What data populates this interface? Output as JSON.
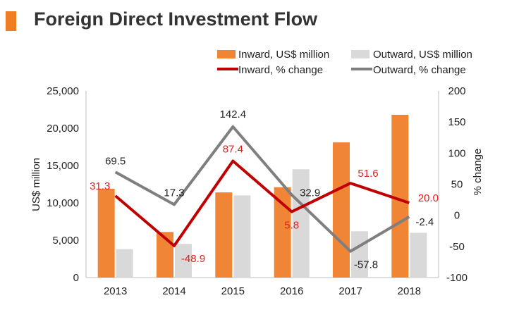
{
  "title": "Foreign Direct Investment Flow",
  "colors": {
    "inward_bar": "#f08536",
    "outward_bar": "#d9d9d9",
    "inward_line": "#c00000",
    "outward_line": "#7f7f7f",
    "accent": "#ef7d22"
  },
  "legend": {
    "inward_bar": "Inward, US$ million",
    "outward_bar": "Outward, US$ million",
    "inward_line": "Inward, % change",
    "outward_line": "Outward, % change"
  },
  "chart_data": {
    "type": "bar",
    "title": "Foreign Direct Investment Flow",
    "categories": [
      "2013",
      "2014",
      "2015",
      "2016",
      "2017",
      "2018"
    ],
    "ylabel": "US$ million",
    "y2label": "% change",
    "ylim": [
      0,
      25000
    ],
    "y2lim": [
      -100,
      200
    ],
    "yticks": [
      "0",
      "5,000",
      "10,000",
      "15,000",
      "20,000",
      "25,000"
    ],
    "y2ticks": [
      "-100",
      "-50",
      "0",
      "50",
      "100",
      "150",
      "200"
    ],
    "legend_position": "top-right",
    "series": [
      {
        "name": "Inward, US$ million",
        "type": "bar",
        "axis": "left",
        "values": [
          11900,
          6100,
          11400,
          12100,
          18100,
          21800
        ]
      },
      {
        "name": "Outward, US$ million",
        "type": "bar",
        "axis": "left",
        "values": [
          3800,
          4500,
          11000,
          14500,
          6200,
          6000
        ]
      },
      {
        "name": "Inward, % change",
        "type": "line",
        "axis": "right",
        "values": [
          31.3,
          -48.9,
          87.4,
          5.8,
          51.6,
          20.0
        ],
        "labels": [
          "31.3",
          "-48.9",
          "87.4",
          "5.8",
          "51.6",
          "20.0"
        ]
      },
      {
        "name": "Outward, % change",
        "type": "line",
        "axis": "right",
        "values": [
          69.5,
          17.3,
          142.4,
          32.9,
          -57.8,
          -2.4
        ],
        "labels": [
          "69.5",
          "17.3",
          "142.4",
          "32.9",
          "-57.8",
          "-2.4"
        ]
      }
    ]
  }
}
